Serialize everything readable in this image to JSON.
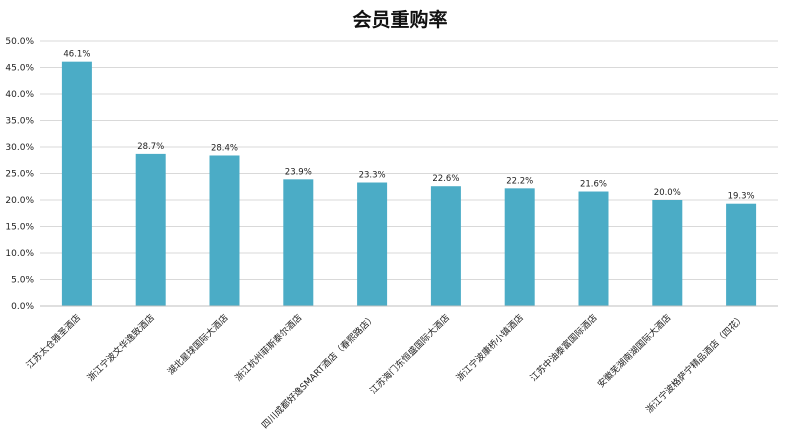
{
  "chart_data": {
    "type": "bar",
    "title": "会员重购率",
    "xlabel": "",
    "ylabel": "",
    "ylim": [
      0,
      50
    ],
    "yticks": [
      "0.0%",
      "5.0%",
      "10.0%",
      "15.0%",
      "20.0%",
      "25.0%",
      "30.0%",
      "35.0%",
      "40.0%",
      "45.0%",
      "50.0%"
    ],
    "grid": "horizontal",
    "bar_color": "#4bacc6",
    "categories": [
      "江苏太仓雅圣酒店",
      "浙江宁波文华逸致酒店",
      "湖北星球国际大酒店",
      "浙江杭州菲斯泰尔酒店",
      "四川成都好逸SMART酒店（春熙路店）",
      "江苏海门东恒盛国际大酒店",
      "浙江宁波康桥小镇酒店",
      "江苏中油泰富国际酒店",
      "安徽芜湖南湖国际大酒店",
      "浙江宁波格萨宁精品酒店（四花）"
    ],
    "values": [
      46.1,
      28.7,
      28.4,
      23.9,
      23.3,
      22.6,
      22.2,
      21.6,
      20.0,
      19.3
    ],
    "data_labels": [
      "46.1%",
      "28.7%",
      "28.4%",
      "23.9%",
      "23.3%",
      "22.6%",
      "22.2%",
      "21.6%",
      "20.0%",
      "19.3%"
    ]
  }
}
